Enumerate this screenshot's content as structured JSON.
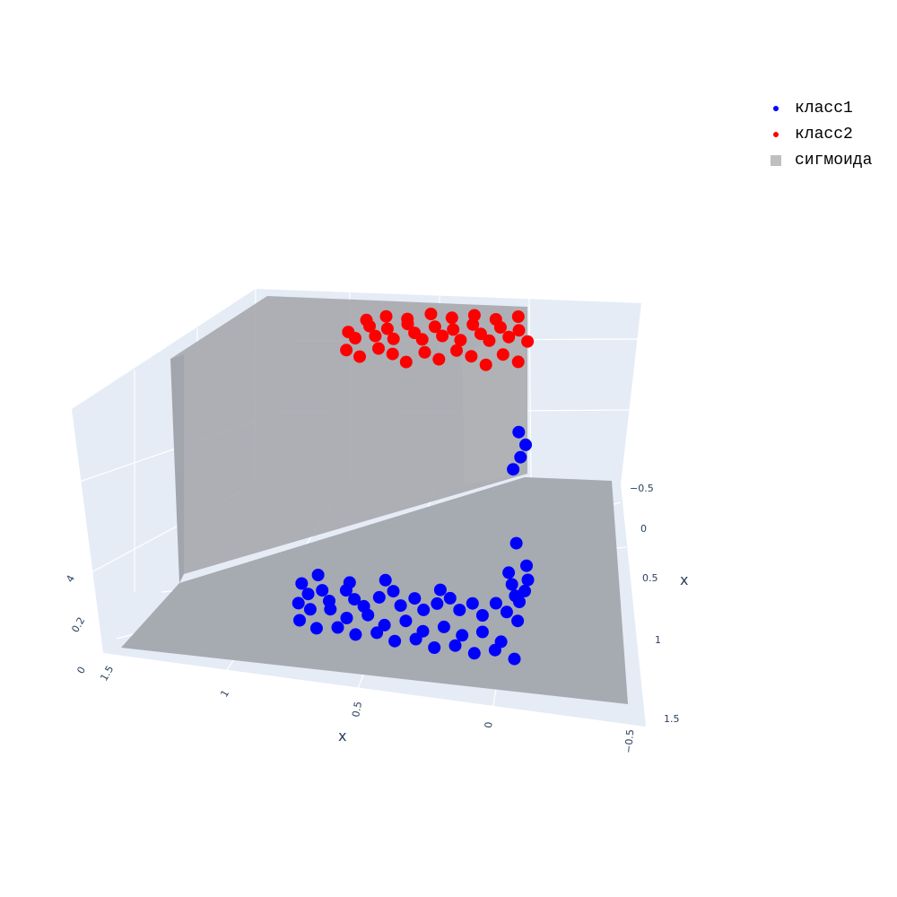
{
  "chart_data": {
    "type": "scatter",
    "x_axis": {
      "label": "x",
      "ticks": [
        "1.5",
        "1",
        "0.5",
        "0",
        "−0.5"
      ]
    },
    "y_axis": {
      "label": "x",
      "ticks": [
        "−0.5",
        "0",
        "0.5",
        "1",
        "1.5"
      ]
    },
    "z_axis": {
      "label": "",
      "ticks": [
        "0",
        "0.2",
        "4"
      ]
    },
    "series": [
      {
        "name": "класс1",
        "color": "#0000ff",
        "points_x1_x2": [
          [
            0.95,
            0.55
          ],
          [
            0.9,
            0.65
          ],
          [
            0.85,
            0.6
          ],
          [
            0.8,
            0.7
          ],
          [
            0.75,
            0.58
          ],
          [
            0.7,
            0.66
          ],
          [
            0.65,
            0.72
          ],
          [
            0.6,
            0.62
          ],
          [
            0.55,
            0.55
          ],
          [
            0.5,
            0.68
          ],
          [
            0.45,
            0.6
          ],
          [
            0.4,
            0.7
          ],
          [
            0.35,
            0.63
          ],
          [
            0.3,
            0.57
          ],
          [
            0.25,
            0.67
          ],
          [
            0.2,
            0.6
          ],
          [
            0.15,
            0.7
          ],
          [
            0.1,
            0.58
          ],
          [
            0.05,
            0.65
          ],
          [
            0.0,
            0.72
          ],
          [
            0.92,
            0.75
          ],
          [
            0.86,
            0.8
          ],
          [
            0.78,
            0.78
          ],
          [
            0.7,
            0.85
          ],
          [
            0.62,
            0.8
          ],
          [
            0.54,
            0.88
          ],
          [
            0.46,
            0.82
          ],
          [
            0.38,
            0.9
          ],
          [
            0.3,
            0.84
          ],
          [
            0.22,
            0.9
          ],
          [
            0.14,
            0.85
          ],
          [
            0.06,
            0.92
          ],
          [
            0.88,
            0.92
          ],
          [
            0.8,
            0.98
          ],
          [
            0.72,
            0.95
          ],
          [
            0.64,
            1.0
          ],
          [
            0.56,
            0.96
          ],
          [
            0.48,
            1.02
          ],
          [
            0.4,
            0.98
          ],
          [
            0.32,
            1.04
          ],
          [
            0.24,
            1.0
          ],
          [
            0.16,
            1.05
          ],
          [
            0.08,
            1.0
          ],
          [
            0.0,
            1.06
          ],
          [
            0.02,
            0.5
          ],
          [
            0.04,
            0.4
          ],
          [
            0.06,
            0.3
          ],
          [
            0.03,
            0.2
          ],
          [
            0.05,
            0.1
          ],
          [
            0.02,
            0.0
          ],
          [
            0.0,
            -0.1
          ],
          [
            0.04,
            -0.2
          ],
          [
            -0.02,
            0.45
          ],
          [
            -0.03,
            0.35
          ],
          [
            -0.02,
            0.25
          ],
          [
            0.0,
            0.55
          ],
          [
            0.9,
            0.45
          ],
          [
            0.6,
            0.45
          ],
          [
            0.35,
            0.5
          ],
          [
            0.75,
            0.5
          ]
        ]
      },
      {
        "name": "класс2",
        "color": "#ff0000",
        "points_x1_x2": [
          [
            0.95,
            -0.35
          ],
          [
            0.9,
            -0.3
          ],
          [
            0.85,
            -0.4
          ],
          [
            0.8,
            -0.32
          ],
          [
            0.75,
            -0.38
          ],
          [
            0.7,
            -0.3
          ],
          [
            0.65,
            -0.42
          ],
          [
            0.6,
            -0.35
          ],
          [
            0.55,
            -0.3
          ],
          [
            0.5,
            -0.4
          ],
          [
            0.45,
            -0.33
          ],
          [
            0.4,
            -0.38
          ],
          [
            0.35,
            -0.3
          ],
          [
            0.3,
            -0.42
          ],
          [
            0.25,
            -0.35
          ],
          [
            0.2,
            -0.3
          ],
          [
            0.15,
            -0.4
          ],
          [
            0.1,
            -0.33
          ],
          [
            0.05,
            -0.38
          ],
          [
            0.0,
            -0.3
          ],
          [
            0.92,
            -0.2
          ],
          [
            0.84,
            -0.15
          ],
          [
            0.76,
            -0.22
          ],
          [
            0.68,
            -0.18
          ],
          [
            0.6,
            -0.12
          ],
          [
            0.52,
            -0.2
          ],
          [
            0.44,
            -0.15
          ],
          [
            0.36,
            -0.22
          ],
          [
            0.28,
            -0.18
          ],
          [
            0.2,
            -0.12
          ],
          [
            0.12,
            -0.2
          ],
          [
            0.04,
            -0.15
          ],
          [
            0.88,
            -0.45
          ],
          [
            0.78,
            -0.48
          ],
          [
            0.66,
            -0.46
          ],
          [
            0.54,
            -0.5
          ],
          [
            0.42,
            -0.47
          ],
          [
            0.3,
            -0.49
          ],
          [
            0.18,
            -0.46
          ],
          [
            0.06,
            -0.48
          ]
        ]
      },
      {
        "name": "сигмоида",
        "color": "#a6a6a6",
        "surface": "sigmoid of x1 and x2 over the range -0.5..1.5"
      }
    ],
    "legend": {
      "position": "top-right",
      "items": [
        {
          "label": "класс1",
          "color": "#0000ff",
          "symbol": "dot"
        },
        {
          "label": "класс2",
          "color": "#ff0000",
          "symbol": "dot"
        },
        {
          "label": "сигмоида",
          "color": "#bfbfbf",
          "symbol": "square"
        }
      ]
    },
    "background_color": "#e5ecf6",
    "grid_color": "#ffffff"
  }
}
